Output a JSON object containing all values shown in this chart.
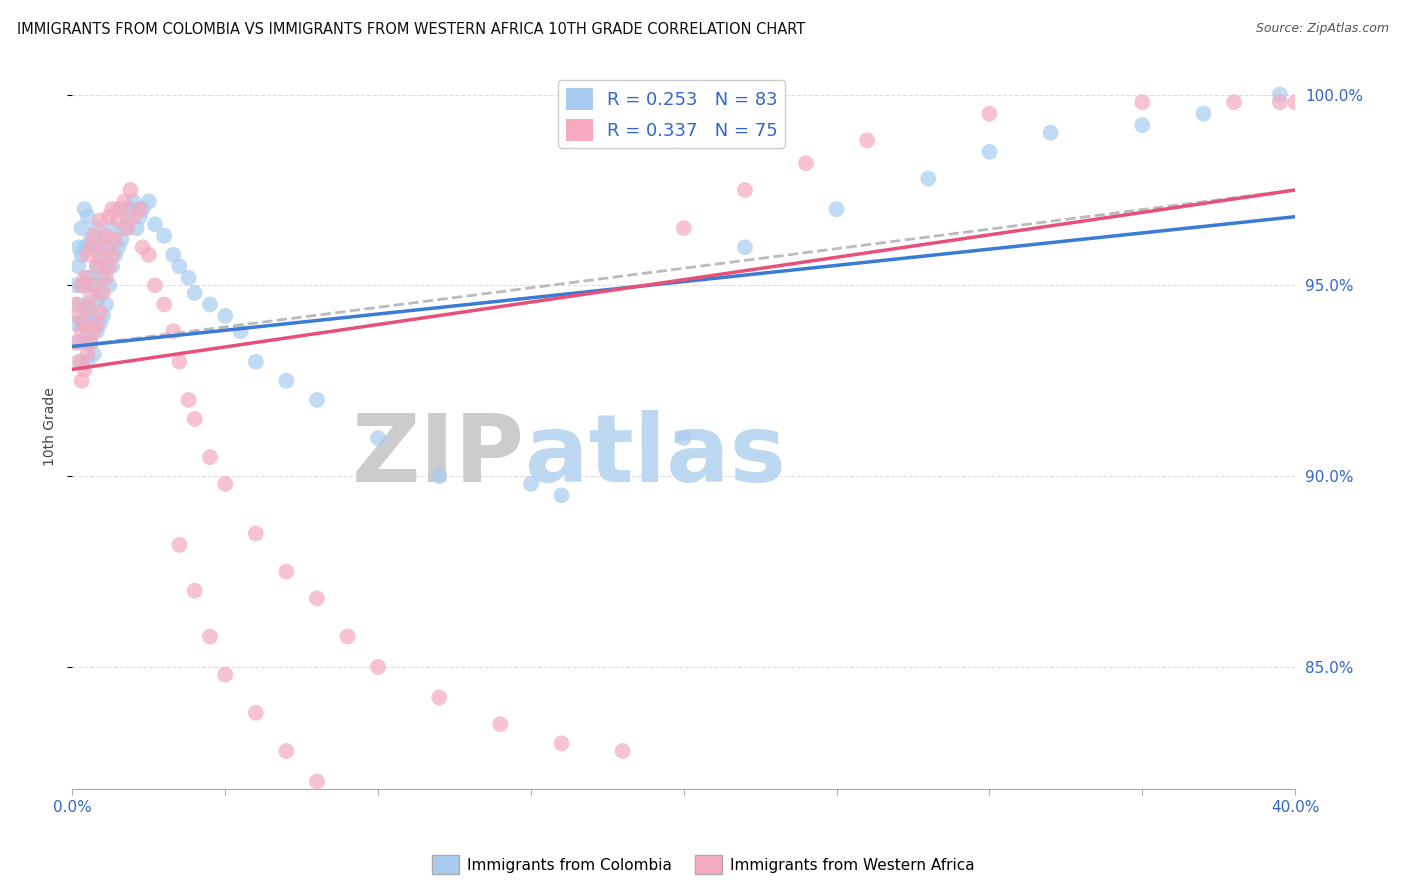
{
  "title": "IMMIGRANTS FROM COLOMBIA VS IMMIGRANTS FROM WESTERN AFRICA 10TH GRADE CORRELATION CHART",
  "source": "Source: ZipAtlas.com",
  "ylabel": "10th Grade",
  "ylabel_right_ticks": [
    "100.0%",
    "95.0%",
    "90.0%",
    "85.0%"
  ],
  "ylabel_right_values": [
    1.0,
    0.95,
    0.9,
    0.85
  ],
  "xlim": [
    0.0,
    0.4
  ],
  "ylim": [
    0.818,
    1.008
  ],
  "R_colombia": 0.253,
  "N_colombia": 83,
  "R_western_africa": 0.337,
  "N_western_africa": 75,
  "color_colombia": "#A8CCF0",
  "color_western_africa": "#F5AABE",
  "color_trend_colombia": "#3A7BD5",
  "color_trend_western_africa": "#E8507A",
  "color_trend_dashed": "#BBBBBB",
  "watermark_zip": "#CCCCCC",
  "watermark_atlas": "#BDD8F0",
  "background_color": "#FFFFFF",
  "grid_color": "#DDDDDD",
  "title_fontsize": 10.5,
  "blue_trend_x0": 0.0,
  "blue_trend_y0": 0.934,
  "blue_trend_x1": 0.4,
  "blue_trend_y1": 0.968,
  "pink_trend_x0": 0.0,
  "pink_trend_y0": 0.928,
  "pink_trend_x1": 0.4,
  "pink_trend_y1": 0.975,
  "dash_trend_x0": 0.0,
  "dash_trend_y0": 0.934,
  "dash_trend_x1": 0.4,
  "dash_trend_y1": 0.975,
  "colombia_x": [
    0.001,
    0.001,
    0.002,
    0.002,
    0.002,
    0.002,
    0.003,
    0.003,
    0.003,
    0.003,
    0.003,
    0.004,
    0.004,
    0.004,
    0.004,
    0.004,
    0.005,
    0.005,
    0.005,
    0.005,
    0.005,
    0.005,
    0.006,
    0.006,
    0.006,
    0.006,
    0.007,
    0.007,
    0.007,
    0.007,
    0.008,
    0.008,
    0.008,
    0.008,
    0.009,
    0.009,
    0.009,
    0.01,
    0.01,
    0.01,
    0.011,
    0.011,
    0.012,
    0.012,
    0.013,
    0.013,
    0.014,
    0.015,
    0.015,
    0.016,
    0.017,
    0.018,
    0.019,
    0.02,
    0.021,
    0.022,
    0.023,
    0.025,
    0.027,
    0.03,
    0.033,
    0.035,
    0.038,
    0.04,
    0.045,
    0.05,
    0.055,
    0.06,
    0.07,
    0.08,
    0.1,
    0.12,
    0.15,
    0.16,
    0.2,
    0.22,
    0.25,
    0.28,
    0.3,
    0.32,
    0.35,
    0.37,
    0.395
  ],
  "colombia_y": [
    0.94,
    0.95,
    0.935,
    0.945,
    0.955,
    0.96,
    0.93,
    0.94,
    0.95,
    0.958,
    0.965,
    0.935,
    0.942,
    0.95,
    0.96,
    0.97,
    0.93,
    0.938,
    0.945,
    0.952,
    0.96,
    0.968,
    0.935,
    0.943,
    0.952,
    0.962,
    0.932,
    0.94,
    0.95,
    0.96,
    0.938,
    0.946,
    0.955,
    0.965,
    0.94,
    0.948,
    0.958,
    0.942,
    0.952,
    0.962,
    0.945,
    0.956,
    0.95,
    0.96,
    0.955,
    0.965,
    0.958,
    0.96,
    0.97,
    0.962,
    0.965,
    0.968,
    0.97,
    0.972,
    0.965,
    0.968,
    0.97,
    0.972,
    0.966,
    0.963,
    0.958,
    0.955,
    0.952,
    0.948,
    0.945,
    0.942,
    0.938,
    0.93,
    0.925,
    0.92,
    0.91,
    0.9,
    0.898,
    0.895,
    0.91,
    0.96,
    0.97,
    0.978,
    0.985,
    0.99,
    0.992,
    0.995,
    1.0
  ],
  "western_africa_x": [
    0.001,
    0.001,
    0.002,
    0.002,
    0.003,
    0.003,
    0.003,
    0.004,
    0.004,
    0.004,
    0.005,
    0.005,
    0.005,
    0.006,
    0.006,
    0.006,
    0.007,
    0.007,
    0.007,
    0.008,
    0.008,
    0.009,
    0.009,
    0.009,
    0.01,
    0.01,
    0.011,
    0.011,
    0.012,
    0.012,
    0.013,
    0.013,
    0.014,
    0.015,
    0.016,
    0.017,
    0.018,
    0.019,
    0.02,
    0.022,
    0.023,
    0.025,
    0.027,
    0.03,
    0.033,
    0.035,
    0.038,
    0.04,
    0.045,
    0.05,
    0.06,
    0.07,
    0.08,
    0.09,
    0.1,
    0.12,
    0.14,
    0.16,
    0.18,
    0.2,
    0.22,
    0.24,
    0.26,
    0.3,
    0.35,
    0.38,
    0.395,
    0.4,
    0.035,
    0.04,
    0.045,
    0.05,
    0.06,
    0.07,
    0.08
  ],
  "western_africa_y": [
    0.935,
    0.945,
    0.93,
    0.942,
    0.925,
    0.938,
    0.95,
    0.928,
    0.94,
    0.952,
    0.932,
    0.944,
    0.958,
    0.935,
    0.947,
    0.96,
    0.938,
    0.95,
    0.963,
    0.94,
    0.955,
    0.943,
    0.957,
    0.967,
    0.948,
    0.96,
    0.952,
    0.963,
    0.955,
    0.968,
    0.958,
    0.97,
    0.962,
    0.967,
    0.97,
    0.972,
    0.965,
    0.975,
    0.968,
    0.97,
    0.96,
    0.958,
    0.95,
    0.945,
    0.938,
    0.93,
    0.92,
    0.915,
    0.905,
    0.898,
    0.885,
    0.875,
    0.868,
    0.858,
    0.85,
    0.842,
    0.835,
    0.83,
    0.828,
    0.965,
    0.975,
    0.982,
    0.988,
    0.995,
    0.998,
    0.998,
    0.998,
    0.998,
    0.882,
    0.87,
    0.858,
    0.848,
    0.838,
    0.828,
    0.82
  ]
}
